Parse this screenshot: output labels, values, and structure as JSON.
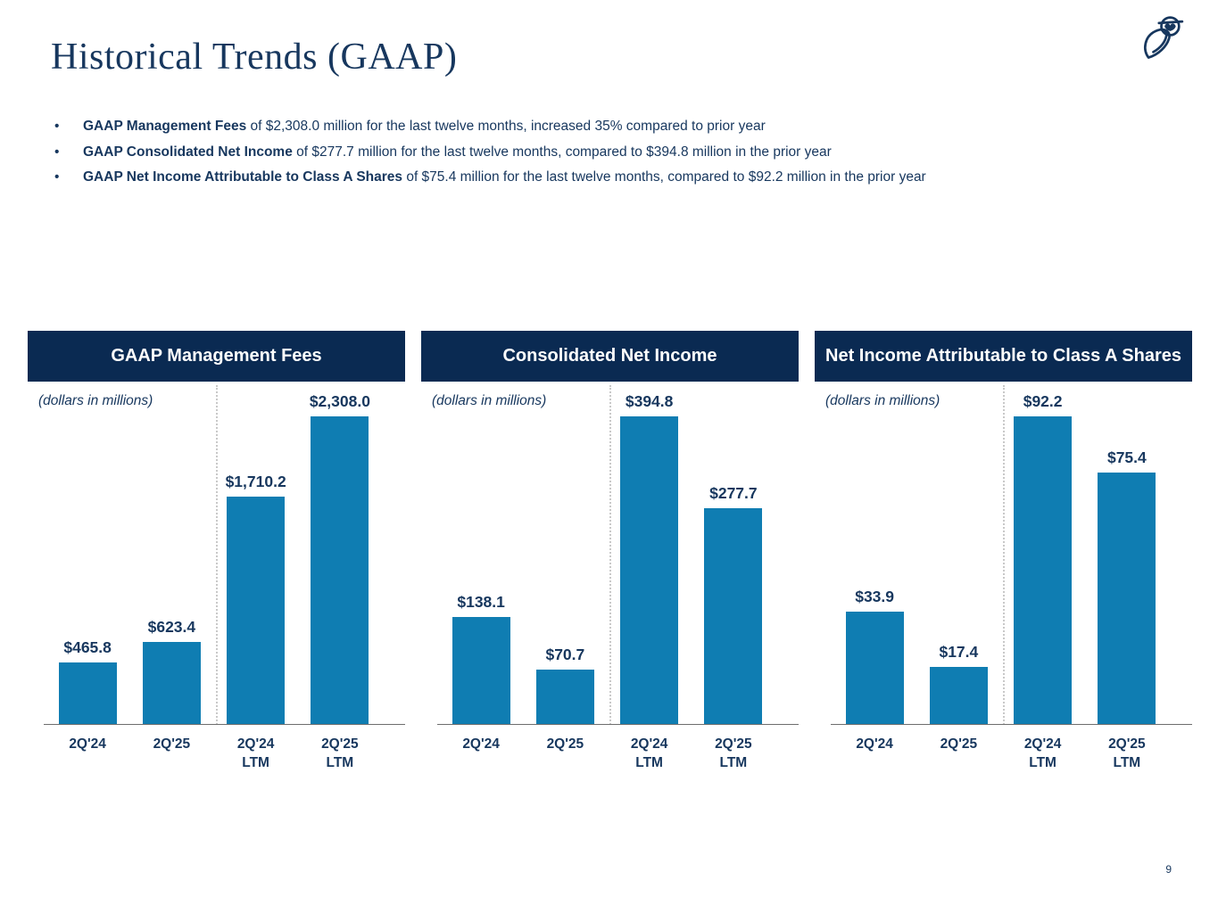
{
  "page": {
    "title": "Historical Trends (GAAP)",
    "page_number": "9"
  },
  "bullets": [
    {
      "lead": "GAAP Management Fees",
      "rest": " of $2,308.0 million for the last twelve months, increased 35% compared to prior year"
    },
    {
      "lead": "GAAP Consolidated Net Income",
      "rest": " of $277.7 million for the last twelve months, compared to $394.8 million in the prior year"
    },
    {
      "lead": "GAAP Net Income Attributable to Class A Shares",
      "rest": " of $75.4 million for the last twelve months, compared to $92.2 million in the prior year"
    }
  ],
  "colors": {
    "header_bg": "#0a2a52",
    "text_navy": "#17375e",
    "bar_blue": "#0f7db2",
    "divider_gray": "#c9c9c9",
    "axis_gray": "#6e6e6e"
  },
  "chart_data": [
    {
      "type": "bar",
      "title": "GAAP Management Fees",
      "subtitle": "(dollars in millions)",
      "categories": [
        "2Q'24",
        "2Q'25",
        "2Q'24\nLTM",
        "2Q'25\nLTM"
      ],
      "values": [
        465.8,
        623.4,
        1710.2,
        2308.0
      ],
      "labels": [
        "$465.8",
        "$623.4",
        "$1,710.2",
        "$2,308.0"
      ],
      "ylim": [
        0,
        2308
      ],
      "grid": false,
      "divider_after_index": 1,
      "legend": "none"
    },
    {
      "type": "bar",
      "title": "Consolidated Net Income",
      "subtitle": "(dollars in millions)",
      "categories": [
        "2Q'24",
        "2Q'25",
        "2Q'24\nLTM",
        "2Q'25\nLTM"
      ],
      "values": [
        138.1,
        70.7,
        394.8,
        277.7
      ],
      "labels": [
        "$138.1",
        "$70.7",
        "$394.8",
        "$277.7"
      ],
      "ylim": [
        0,
        394.8
      ],
      "grid": false,
      "divider_after_index": 1,
      "legend": "none"
    },
    {
      "type": "bar",
      "title": "Net Income Attributable to Class A Shares",
      "subtitle": "(dollars in millions)",
      "categories": [
        "2Q'24",
        "2Q'25",
        "2Q'24\nLTM",
        "2Q'25\nLTM"
      ],
      "values": [
        33.9,
        17.4,
        92.2,
        75.4
      ],
      "labels": [
        "$33.9",
        "$17.4",
        "$92.2",
        "$75.4"
      ],
      "ylim": [
        0,
        92.2
      ],
      "grid": false,
      "divider_after_index": 1,
      "legend": "none"
    }
  ]
}
